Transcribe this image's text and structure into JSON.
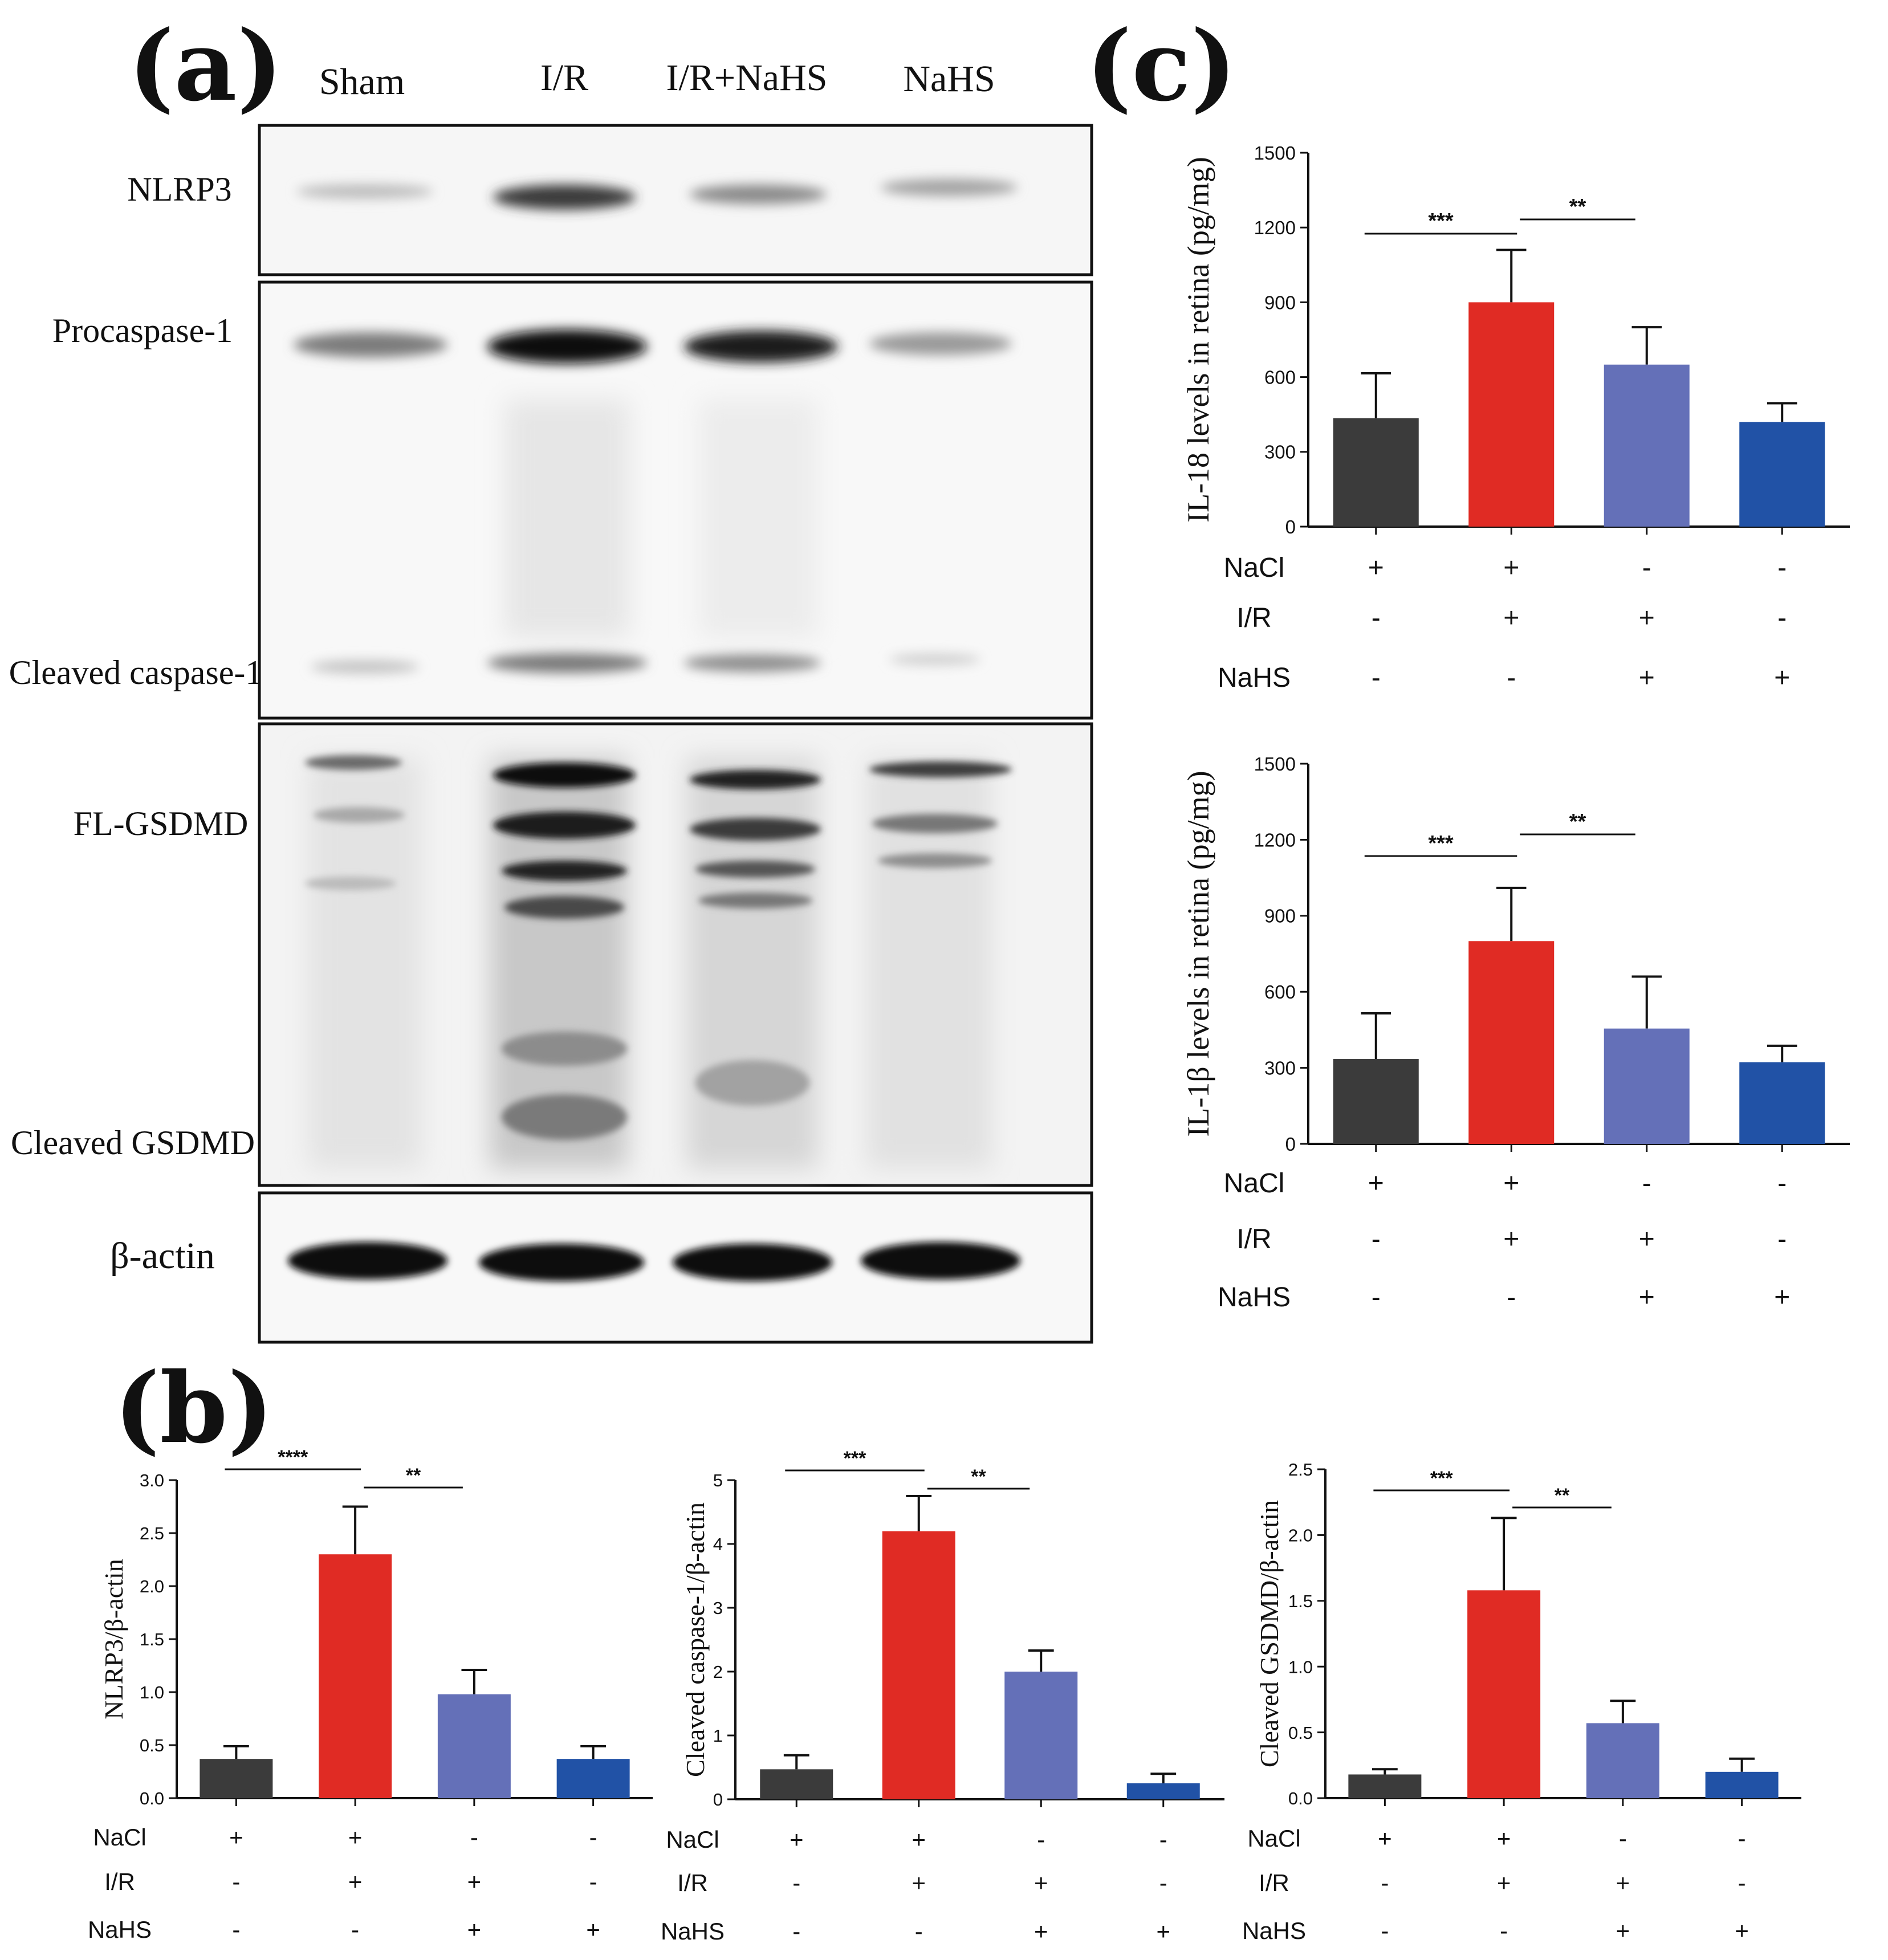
{
  "panels": {
    "a": "(a)",
    "b": "(b)",
    "c": "(c)"
  },
  "blot": {
    "lanes": [
      "Sham",
      "I/R",
      "I/R+NaHS",
      "NaHS"
    ],
    "rows": {
      "nlrp3": "NLRP3",
      "procaspase": "Procaspase-1",
      "cleaved_caspase": "Cleaved caspase-1",
      "fl_gsdmd": "FL-GSDMD",
      "cleaved_gsdmd": "Cleaved GSDMD",
      "actin": "β-actin"
    }
  },
  "treatment": {
    "labels": [
      "NaCl",
      "I/R",
      "NaHS"
    ],
    "signs": [
      [
        "+",
        "+",
        "-",
        "-"
      ],
      [
        "-",
        "+",
        "+",
        "-"
      ],
      [
        "-",
        "-",
        "+",
        "+"
      ]
    ]
  },
  "colors": {
    "sham": "#3b3b3b",
    "ir": "#e02b24",
    "ir_nahs": "#6470b8",
    "nahs": "#2152a6"
  },
  "chart_data": [
    {
      "id": "b1",
      "type": "bar",
      "ylabel": "NLRP3/β-actin",
      "ylim": [
        0,
        3.0
      ],
      "yticks": [
        0.0,
        0.5,
        1.0,
        1.5,
        2.0,
        2.5,
        3.0
      ],
      "yticklabels": [
        "0.0",
        "0.5",
        "1.0",
        "1.5",
        "2.0",
        "2.5",
        "3.0"
      ],
      "values": [
        0.37,
        2.3,
        0.98,
        0.37
      ],
      "errors": [
        0.12,
        0.45,
        0.23,
        0.12
      ],
      "significance": [
        {
          "from": 0,
          "to": 1,
          "label": "****"
        },
        {
          "from": 1,
          "to": 2,
          "label": "**"
        }
      ]
    },
    {
      "id": "b2",
      "type": "bar",
      "ylabel": "Cleaved caspase-1/β-actin",
      "ylim": [
        0,
        5
      ],
      "yticks": [
        0,
        1,
        2,
        3,
        4,
        5
      ],
      "yticklabels": [
        "0",
        "1",
        "2",
        "3",
        "4",
        "5"
      ],
      "values": [
        0.47,
        4.2,
        2.0,
        0.25
      ],
      "errors": [
        0.22,
        0.55,
        0.33,
        0.15
      ],
      "significance": [
        {
          "from": 0,
          "to": 1,
          "label": "***"
        },
        {
          "from": 1,
          "to": 2,
          "label": "**"
        }
      ]
    },
    {
      "id": "b3",
      "type": "bar",
      "ylabel": "Cleaved GSDMD/β-actin",
      "ylim": [
        0,
        2.5
      ],
      "yticks": [
        0.0,
        0.5,
        1.0,
        1.5,
        2.0,
        2.5
      ],
      "yticklabels": [
        "0.0",
        "0.5",
        "1.0",
        "1.5",
        "2.0",
        "2.5"
      ],
      "values": [
        0.18,
        1.58,
        0.57,
        0.2
      ],
      "errors": [
        0.04,
        0.55,
        0.17,
        0.1
      ],
      "significance": [
        {
          "from": 0,
          "to": 1,
          "label": "***"
        },
        {
          "from": 1,
          "to": 2,
          "label": "**"
        }
      ]
    },
    {
      "id": "c1",
      "type": "bar",
      "ylabel": "IL-18 levels in retina (pg/mg)",
      "ylim": [
        0,
        1500
      ],
      "yticks": [
        0,
        300,
        600,
        900,
        1200,
        1500
      ],
      "yticklabels": [
        "0",
        "300",
        "600",
        "900",
        "1200",
        "1500"
      ],
      "values": [
        435,
        900,
        650,
        420
      ],
      "errors": [
        180,
        210,
        150,
        75
      ],
      "significance": [
        {
          "from": 0,
          "to": 1,
          "label": "***"
        },
        {
          "from": 1,
          "to": 2,
          "label": "**"
        }
      ]
    },
    {
      "id": "c2",
      "type": "bar",
      "ylabel": "IL-1β levels in retina (pg/mg)",
      "ylim": [
        0,
        1500
      ],
      "yticks": [
        0,
        300,
        600,
        900,
        1200,
        1500
      ],
      "yticklabels": [
        "0",
        "300",
        "600",
        "900",
        "1200",
        "1500"
      ],
      "values": [
        335,
        800,
        455,
        322
      ],
      "errors": [
        180,
        210,
        205,
        65
      ],
      "significance": [
        {
          "from": 0,
          "to": 1,
          "label": "***"
        },
        {
          "from": 1,
          "to": 2,
          "label": "**"
        }
      ]
    }
  ]
}
